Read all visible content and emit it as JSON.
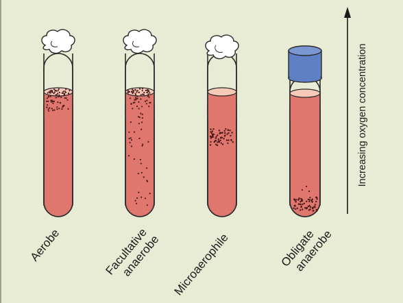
{
  "tubes": [
    {
      "id": "aerobe",
      "label_lines": [
        "Aerobe"
      ],
      "cap": "cotton-plug",
      "growth": "dense at top surface"
    },
    {
      "id": "facultative",
      "label_lines": [
        "Facultative",
        "anaerobe"
      ],
      "cap": "cotton-plug",
      "growth": "dense at top, scattered throughout"
    },
    {
      "id": "microaerophile",
      "label_lines": [
        "Microaerophile"
      ],
      "cap": "cotton-plug",
      "growth": "band just below surface"
    },
    {
      "id": "obligate",
      "label_lines": [
        "Obligate",
        "anaerobe"
      ],
      "cap": "sealed-blue-cap",
      "growth": "at bottom"
    }
  ],
  "axis": {
    "label": "Increasing oxygen concentration",
    "direction": "up"
  },
  "colors": {
    "background": "#e8ecd5",
    "medium": "#e0776e",
    "medium_shadow": "#c85a52",
    "surface_pink": "#f6c9b8",
    "glass_outline": "#2a2a2a",
    "cotton": "#ffffff",
    "cap_blue": "#5f80c4",
    "colony_dots": "#4a1a1a"
  }
}
